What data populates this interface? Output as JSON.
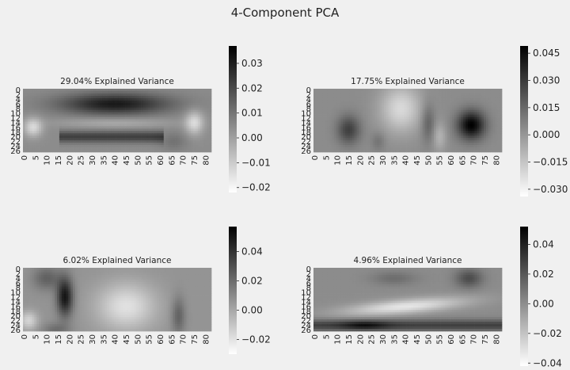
{
  "figure": {
    "title": "4-Component PCA"
  },
  "colors": {
    "background": "#f0f0f0",
    "heatmap_low": "#ffffff",
    "heatmap_high": "#000000"
  },
  "chart_data": [
    {
      "type": "heatmap",
      "title": "29.04% Explained Variance",
      "xlabel": "",
      "ylabel": "",
      "colormap": "greys",
      "grid": false,
      "legend": "colorbar-right",
      "x_tick_labels": [
        "0",
        "5",
        "10",
        "15",
        "20",
        "25",
        "30",
        "35",
        "40",
        "45",
        "50",
        "55",
        "60",
        "65",
        "70",
        "75",
        "80"
      ],
      "y_tick_labels": [
        "0",
        "2",
        "4",
        "6",
        "8",
        "10",
        "12",
        "14",
        "16",
        "18",
        "20",
        "22",
        "24",
        "26"
      ],
      "grid_rows": 27,
      "grid_cols": 83,
      "colorbar": {
        "range": [
          -0.022,
          0.037
        ],
        "ticks": [
          "0.03",
          "0.02",
          "0.01",
          "0.00",
          "−0.01",
          "−0.02"
        ]
      },
      "pattern": "dark band across columns 15-62 in upper rows, lighter middle band, darker lower band, light patches at columns 0-8 and 70-78"
    },
    {
      "type": "heatmap",
      "title": "17.75% Explained Variance",
      "xlabel": "",
      "ylabel": "",
      "colormap": "greys",
      "grid": false,
      "legend": "colorbar-right",
      "x_tick_labels": [
        "0",
        "5",
        "10",
        "15",
        "20",
        "25",
        "30",
        "35",
        "40",
        "45",
        "50",
        "55",
        "60",
        "65",
        "70",
        "75",
        "80"
      ],
      "y_tick_labels": [
        "0",
        "2",
        "4",
        "6",
        "8",
        "10",
        "12",
        "14",
        "16",
        "18",
        "20",
        "22",
        "24",
        "26"
      ],
      "grid_rows": 27,
      "grid_cols": 83,
      "colorbar": {
        "range": [
          -0.034,
          0.049
        ],
        "ticks": [
          "0.045",
          "0.030",
          "0.015",
          "0.000",
          "−0.015",
          "−0.030"
        ]
      },
      "pattern": "dark blob at columns 62-76 lower rows, dark patch at columns 10-22, light vertical band at columns 28-55"
    },
    {
      "type": "heatmap",
      "title": "6.02% Explained Variance",
      "xlabel": "",
      "ylabel": "",
      "colormap": "greys",
      "grid": false,
      "legend": "colorbar-right",
      "x_tick_labels": [
        "0",
        "5",
        "10",
        "15",
        "20",
        "25",
        "30",
        "35",
        "40",
        "45",
        "50",
        "55",
        "60",
        "65",
        "70",
        "75",
        "80"
      ],
      "y_tick_labels": [
        "0",
        "2",
        "4",
        "6",
        "8",
        "10",
        "12",
        "14",
        "16",
        "18",
        "20",
        "22",
        "24",
        "26"
      ],
      "grid_rows": 27,
      "grid_cols": 83,
      "colorbar": {
        "range": [
          -0.03,
          0.057
        ],
        "ticks": [
          "0.04",
          "0.02",
          "0.00",
          "−0.02"
        ]
      },
      "pattern": "dark vertical band at columns 15-22, light wide area at columns 30-65, darker lower rows on the left"
    },
    {
      "type": "heatmap",
      "title": "4.96% Explained Variance",
      "xlabel": "",
      "ylabel": "",
      "colormap": "greys",
      "grid": false,
      "legend": "colorbar-right",
      "x_tick_labels": [
        "0",
        "5",
        "10",
        "15",
        "20",
        "25",
        "30",
        "35",
        "40",
        "45",
        "50",
        "55",
        "60",
        "65",
        "70",
        "75",
        "80"
      ],
      "y_tick_labels": [
        "0",
        "2",
        "4",
        "6",
        "8",
        "10",
        "12",
        "14",
        "16",
        "18",
        "20",
        "22",
        "24",
        "26"
      ],
      "grid_rows": 27,
      "grid_cols": 83,
      "colorbar": {
        "range": [
          -0.042,
          0.052
        ],
        "ticks": [
          "0.04",
          "0.02",
          "0.00",
          "−0.02",
          "−0.04"
        ]
      },
      "pattern": "dark horizontal band across bottom rows 21-26, light diagonal band in middle rows, darker patches at upper right"
    }
  ]
}
